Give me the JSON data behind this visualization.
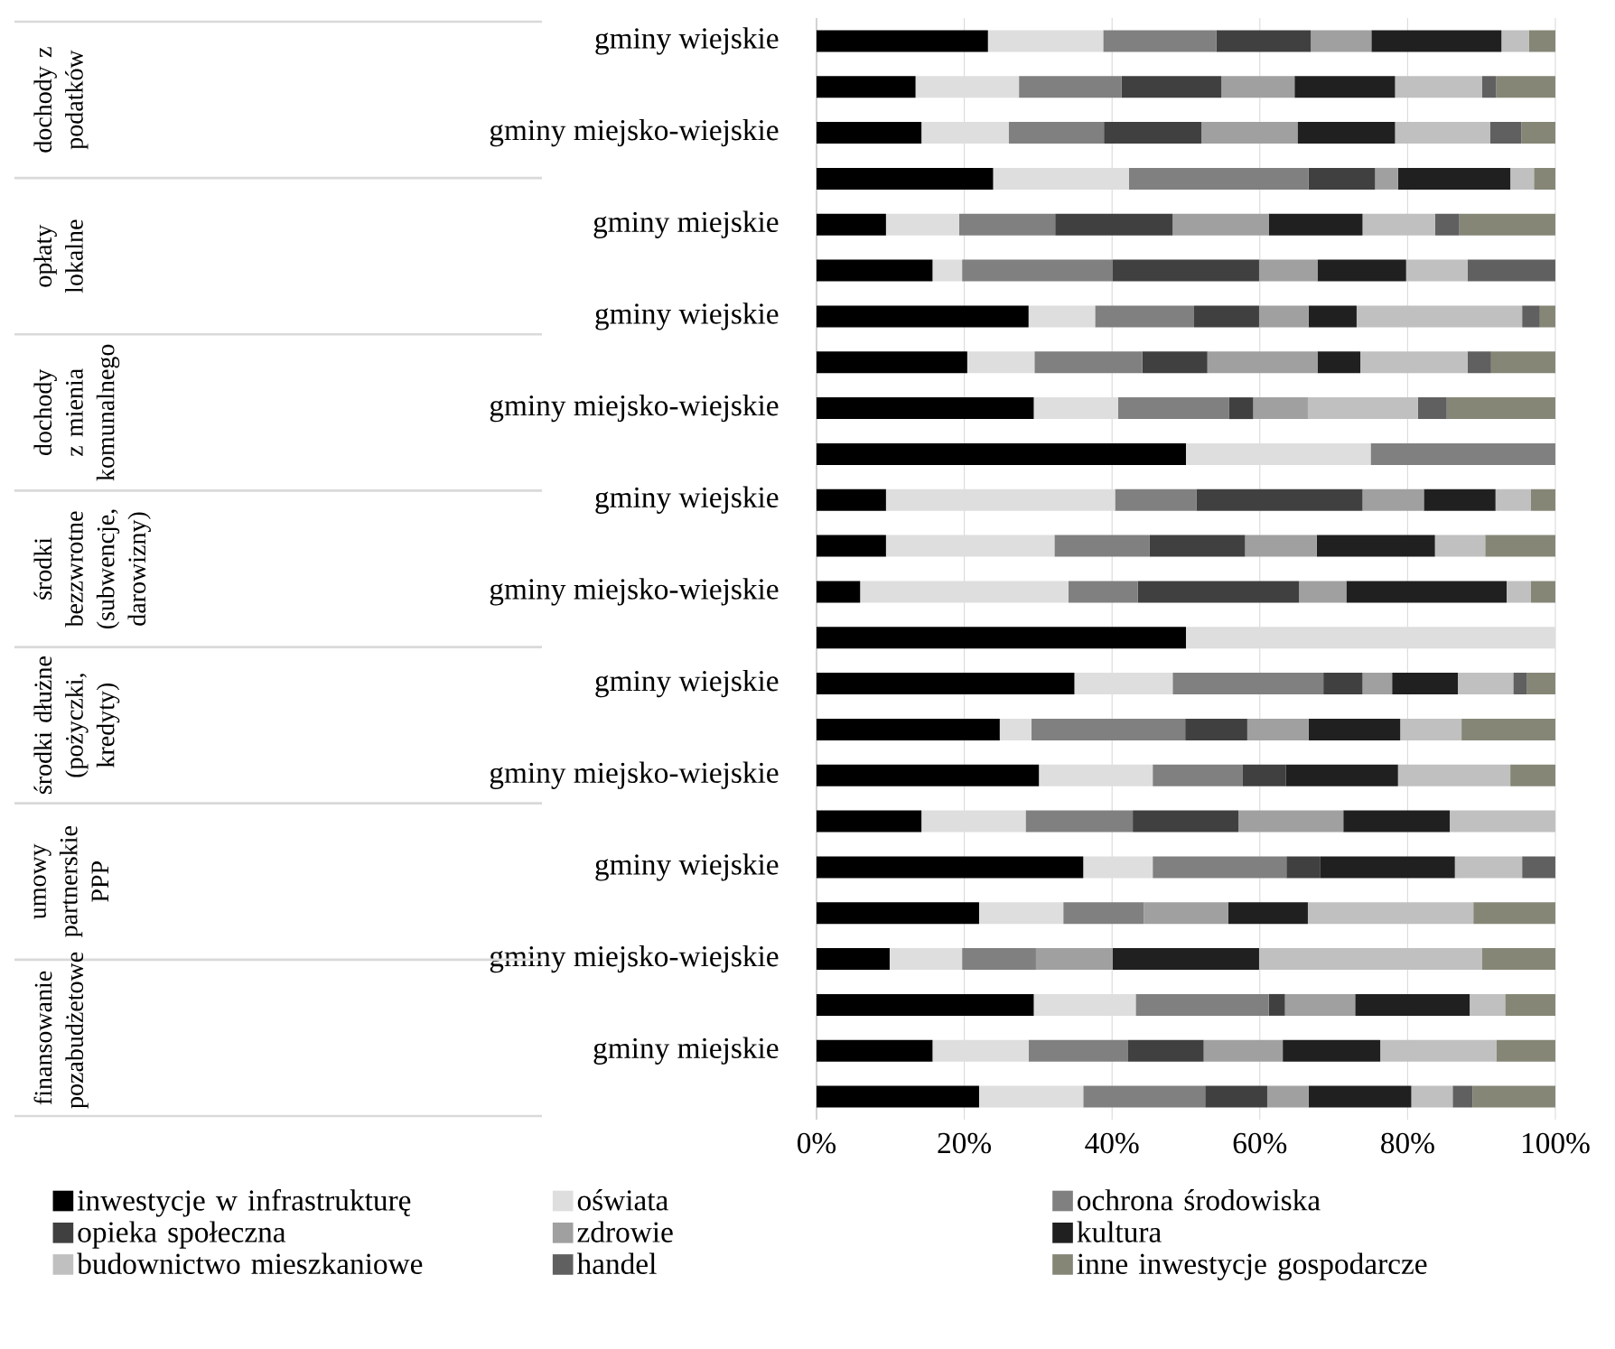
{
  "chart_data": {
    "type": "bar",
    "orientation": "horizontal",
    "stacked": true,
    "categories": [
      "gminy wiejskie",
      null,
      "gminy miejsko-wiejskie",
      null,
      "gminy miejskie",
      null,
      "gminy wiejskie",
      null,
      "gminy miejsko-wiejskie",
      null,
      "gminy wiejskie",
      null,
      "gminy miejsko-wiejskie",
      null,
      "gminy wiejskie",
      null,
      "gminy miejsko-wiejskie",
      null,
      "gminy wiejskie",
      null,
      "gminy miejsko-wiejskie",
      null,
      "gminy miejskie",
      null
    ],
    "series": [
      {
        "name": "inwestycje w infrastrukturę",
        "color": "#000000",
        "values": [
          23.2,
          13.4,
          14.2,
          23.9,
          9.4,
          15.7,
          28.7,
          20.4,
          29.4,
          50,
          9.4,
          9.4,
          5.9,
          50,
          34.9,
          24.8,
          30.1,
          14.2,
          36.1,
          22.0,
          9.9,
          29.4,
          15.7,
          22.0
        ]
      },
      {
        "name": "oświata",
        "color": "#dedede",
        "values": [
          15.6,
          14.0,
          11.8,
          18.4,
          9.9,
          4.0,
          9.0,
          9.1,
          11.4,
          25,
          31.0,
          22.8,
          28.2,
          50,
          13.3,
          4.3,
          15.4,
          14.1,
          9.4,
          11.4,
          9.8,
          13.8,
          13.0,
          14.1
        ]
      },
      {
        "name": "ochrona środowiska",
        "color": "#808080",
        "values": [
          15.3,
          13.9,
          12.9,
          24.3,
          13.0,
          20.4,
          13.4,
          14.6,
          15.0,
          25,
          11.0,
          12.9,
          9.4,
          0,
          20.4,
          20.8,
          12.2,
          14.5,
          18.1,
          10.9,
          10.0,
          18.0,
          13.4,
          16.5
        ]
      },
      {
        "name": "opieka społeczna",
        "color": "#404040",
        "values": [
          12.8,
          13.5,
          13.2,
          9.0,
          15.9,
          19.8,
          8.8,
          8.8,
          3.3,
          0,
          22.5,
          12.9,
          21.8,
          0,
          5.3,
          8.4,
          5.8,
          14.3,
          4.6,
          0,
          0,
          2.2,
          10.3,
          8.4
        ]
      },
      {
        "name": "zdrowie",
        "color": "#a0a0a0",
        "values": [
          8.2,
          9.9,
          13.0,
          3.1,
          13.0,
          7.9,
          6.7,
          14.9,
          7.4,
          0,
          8.3,
          9.7,
          6.4,
          0,
          4.0,
          8.3,
          0,
          14.2,
          0,
          11.4,
          10.4,
          9.5,
          10.7,
          5.6
        ]
      },
      {
        "name": "kultura",
        "color": "#202020",
        "values": [
          17.6,
          13.6,
          13.2,
          15.2,
          12.7,
          12.0,
          6.5,
          5.8,
          0,
          0,
          9.7,
          16.0,
          21.7,
          0,
          8.9,
          12.4,
          15.2,
          14.4,
          18.2,
          10.8,
          19.8,
          15.5,
          13.2,
          13.9
        ]
      },
      {
        "name": "budownictwo mieszkaniowe",
        "color": "#c0c0c0",
        "values": [
          3.7,
          11.8,
          12.9,
          3.2,
          9.8,
          8.3,
          22.4,
          14.5,
          14.9,
          0,
          4.8,
          6.8,
          3.3,
          0,
          7.5,
          8.3,
          15.2,
          14.3,
          9.1,
          22.4,
          30.2,
          4.8,
          15.7,
          5.6
        ]
      },
      {
        "name": "handel",
        "color": "#606060",
        "values": [
          0,
          1.9,
          4.2,
          0,
          3.3,
          11.9,
          2.4,
          3.2,
          3.9,
          0,
          0,
          0,
          0,
          0,
          1.8,
          0,
          0,
          0,
          4.5,
          0,
          0,
          0,
          0,
          2.7
        ]
      },
      {
        "name": "inne inwestycje gospodarcze",
        "color": "#868677",
        "values": [
          3.7,
          8.0,
          4.6,
          2.9,
          13.0,
          0,
          2.1,
          8.7,
          14.7,
          0,
          3.3,
          9.5,
          3.3,
          0,
          3.9,
          12.7,
          6.1,
          0,
          0,
          11.1,
          9.9,
          6.8,
          8.0,
          11.2
        ]
      }
    ],
    "xlim": [
      0,
      100
    ],
    "xticks": [
      {
        "value": 0,
        "label": "0%"
      },
      {
        "value": 20,
        "label": "20%"
      },
      {
        "value": 40,
        "label": "40%"
      },
      {
        "value": 60,
        "label": "60%"
      },
      {
        "value": 80,
        "label": "80%"
      },
      {
        "value": 100,
        "label": "100%"
      }
    ],
    "grid": "x",
    "legend": "bottom",
    "annotations": [
      "dochody z podatków",
      "opłaty lokalne",
      "dochody z mienia komunalnego",
      "środki bezzwrotne (subwencje, darowizny)",
      "środki dłużne (pożyczki, kredyty)",
      "umowy partnerskie PPP",
      "finansowanie pozabudżetowe"
    ]
  }
}
